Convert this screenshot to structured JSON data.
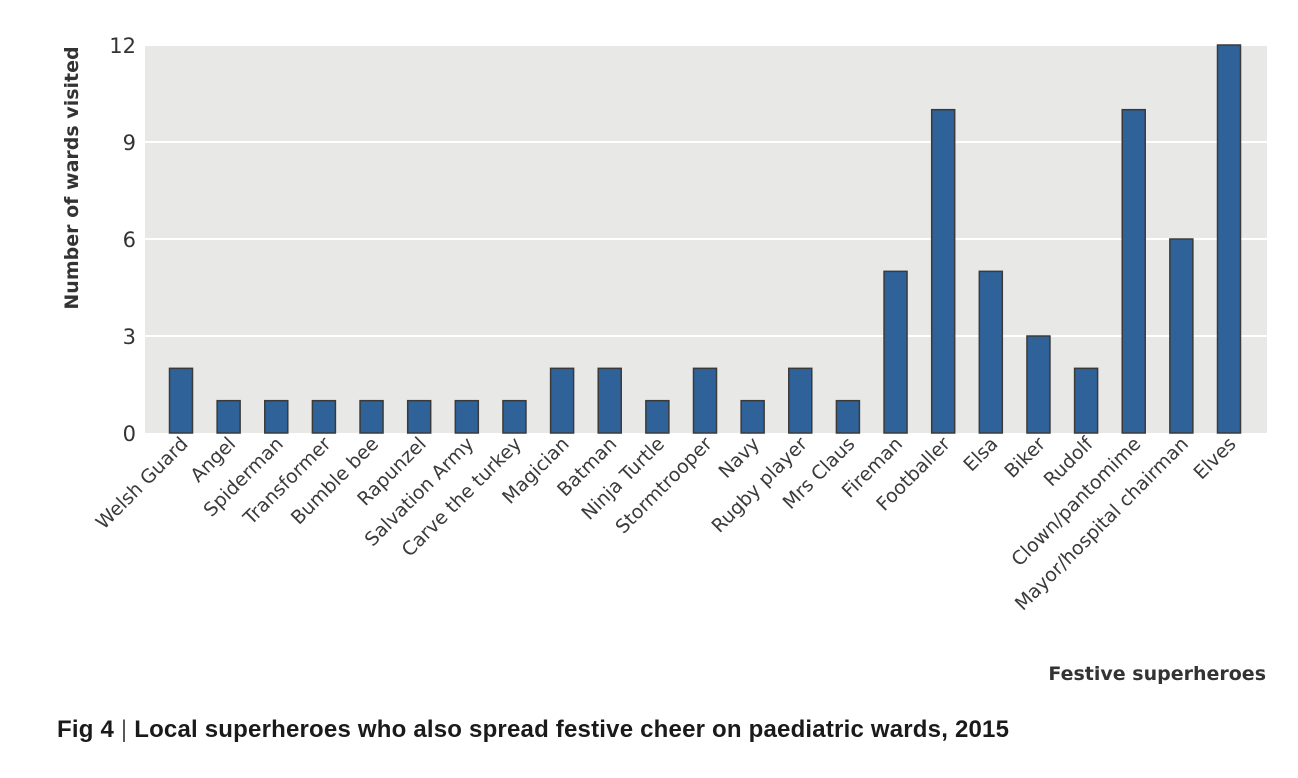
{
  "chart_data": {
    "type": "bar",
    "title": "",
    "xlabel": "Festive superheroes",
    "ylabel": "Number of wards visited",
    "ylim": [
      0,
      12
    ],
    "yticks": [
      0,
      3,
      6,
      9,
      12
    ],
    "grid": true,
    "categories": [
      "Welsh Guard",
      "Angel",
      "Spiderman",
      "Transformer",
      "Bumble bee",
      "Rapunzel",
      "Salvation Army",
      "Carve the turkey",
      "Magician",
      "Batman",
      "Ninja Turtle",
      "Stormtrooper",
      "Navy",
      "Rugby player",
      "Mrs Claus",
      "Fireman",
      "Footballer",
      "Elsa",
      "Biker",
      "Rudolf",
      "Clown/pantomime",
      "Mayor/hospital chairman",
      "Elves"
    ],
    "values": [
      2,
      1,
      1,
      1,
      1,
      1,
      1,
      1,
      2,
      2,
      1,
      2,
      1,
      2,
      1,
      5,
      10,
      5,
      3,
      2,
      10,
      6,
      12
    ],
    "colors": {
      "bar": "#2e6299",
      "bar_edge": "#3a3a3a",
      "panel": "#e8e8e7",
      "grid": "#ffffff"
    }
  },
  "caption": {
    "fig": "Fig 4",
    "separator": "|",
    "text": "Local superheroes who also spread festive cheer on paediatric wards, 2015"
  }
}
